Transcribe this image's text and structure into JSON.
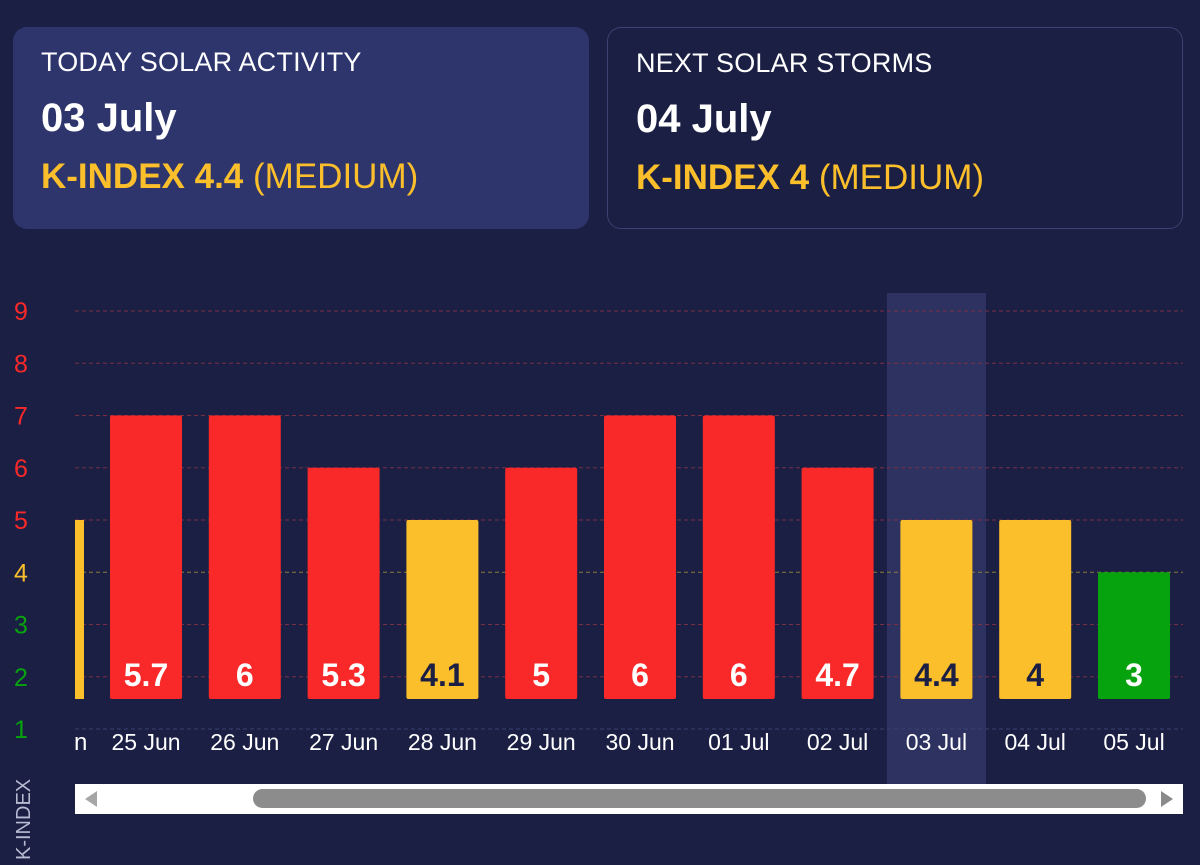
{
  "today": {
    "title": "TODAY SOLAR ACTIVITY",
    "date": "03 July",
    "k_label": "K-INDEX 4.4",
    "level": "(MEDIUM)"
  },
  "next": {
    "title": "NEXT SOLAR STORMS",
    "date": "04 July",
    "k_label": "K-INDEX 4",
    "level": "(MEDIUM)"
  },
  "colors": {
    "red": "#f9292a",
    "yellow": "#fbbf2c",
    "green": "#07a30e",
    "background": "#1b1f44",
    "highlight": "#2e3261"
  },
  "chart_data": {
    "type": "bar",
    "ylabel": "K-INDEX",
    "ylim": [
      1,
      9
    ],
    "y_ticks": [
      "1",
      "2",
      "3",
      "4",
      "5",
      "6",
      "7",
      "8",
      "9"
    ],
    "partial_category_label": "n",
    "partial_bar_value": 5,
    "categories": [
      "25 Jun",
      "26 Jun",
      "27 Jun",
      "28 Jun",
      "29 Jun",
      "30 Jun",
      "01 Jul",
      "02 Jul",
      "03 Jul",
      "04 Jul",
      "05 Jul"
    ],
    "values": [
      5.7,
      6,
      5.3,
      4.1,
      5,
      6,
      6,
      4.7,
      4.4,
      4,
      3
    ],
    "bar_heights": [
      7,
      7,
      6,
      5,
      6,
      7,
      7,
      6,
      5,
      5,
      4
    ],
    "value_labels": [
      "5.7",
      "6",
      "5.3",
      "4.1",
      "5",
      "6",
      "6",
      "4.7",
      "4.4",
      "4",
      "3"
    ],
    "bar_colors": [
      "red",
      "red",
      "red",
      "yellow",
      "red",
      "red",
      "red",
      "red",
      "yellow",
      "yellow",
      "green"
    ],
    "label_colors": [
      "white",
      "white",
      "white",
      "dark",
      "white",
      "white",
      "white",
      "white",
      "dark",
      "dark",
      "white"
    ],
    "highlighted_category": "03 Jul",
    "grid": true
  }
}
